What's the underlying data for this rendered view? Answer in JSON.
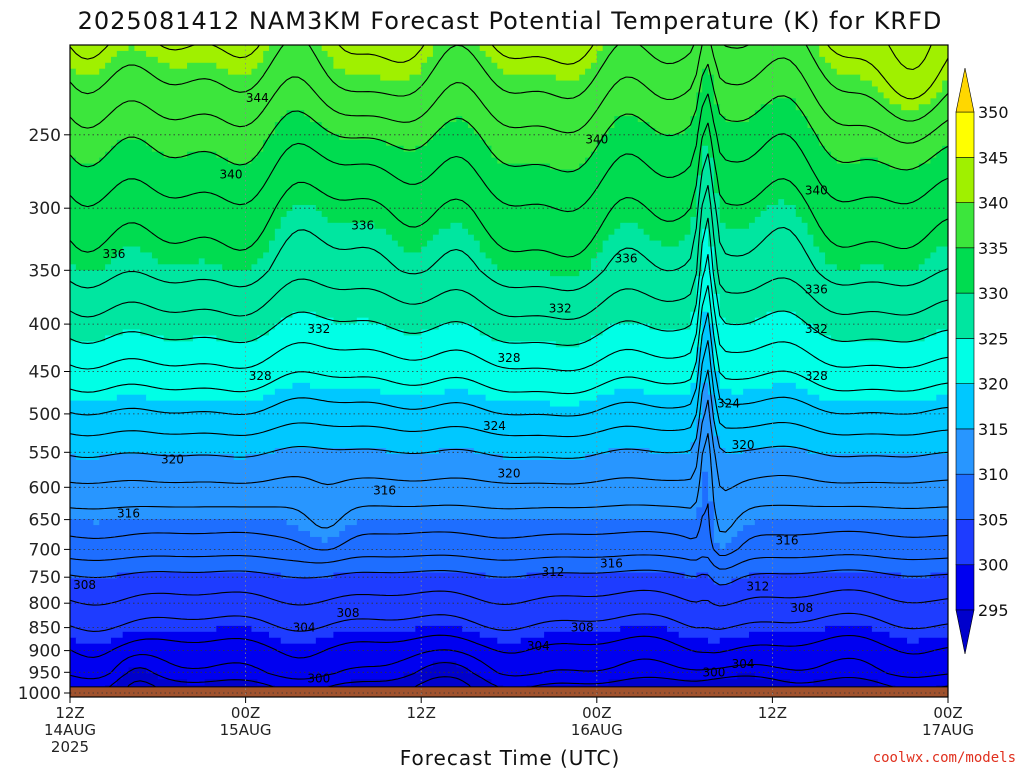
{
  "page": {
    "title": "2025081412 NAM3KM Forecast Potential Temperature (K) for KRFD",
    "credit": "coolwx.com/models"
  },
  "chart_data": {
    "type": "contour",
    "title": "2025081412 NAM3KM Forecast Potential Temperature (K) for KRFD",
    "xlabel": "Forecast Time (UTC)",
    "ylabel": "",
    "x_range_hours": [
      0,
      60
    ],
    "y_axis": {
      "variable": "pressure",
      "units": "hPa",
      "scale": "log",
      "range": [
        1010,
        200
      ],
      "inverted": true
    },
    "y_ticks": [
      250,
      300,
      350,
      400,
      450,
      500,
      550,
      600,
      650,
      700,
      750,
      800,
      850,
      900,
      950,
      1000
    ],
    "x_ticks": [
      {
        "hour": 0,
        "lines": [
          "12Z",
          "14AUG",
          "2025"
        ]
      },
      {
        "hour": 12,
        "lines": [
          "00Z",
          "15AUG"
        ]
      },
      {
        "hour": 24,
        "lines": [
          "12Z"
        ]
      },
      {
        "hour": 36,
        "lines": [
          "00Z",
          "16AUG"
        ]
      },
      {
        "hour": 48,
        "lines": [
          "12Z"
        ]
      },
      {
        "hour": 60,
        "lines": [
          "00Z",
          "17AUG"
        ]
      }
    ],
    "grid": true,
    "ground_level_hPa": 985,
    "colorbar": {
      "levels": [
        295,
        300,
        305,
        310,
        315,
        320,
        325,
        330,
        335,
        340,
        345,
        350
      ],
      "colors": [
        "#0000cc",
        "#0000f0",
        "#1e3cff",
        "#1e6eff",
        "#2896ff",
        "#00c8ff",
        "#00ffe6",
        "#00e6a0",
        "#00dc50",
        "#3ce63c",
        "#a0f000",
        "#ffff00"
      ],
      "low_extend_color": "#0000cc",
      "high_extend_color": "#ffd700"
    },
    "contour_interval": 2,
    "theta_profile": [
      {
        "p": 985,
        "theta": 299.5
      },
      {
        "p": 950,
        "theta": 302.0
      },
      {
        "p": 900,
        "theta": 303.5
      },
      {
        "p": 850,
        "theta": 305.5
      },
      {
        "p": 800,
        "theta": 307.5
      },
      {
        "p": 750,
        "theta": 309.5
      },
      {
        "p": 700,
        "theta": 313.0
      },
      {
        "p": 650,
        "theta": 315.0
      },
      {
        "p": 600,
        "theta": 317.5
      },
      {
        "p": 550,
        "theta": 320.0
      },
      {
        "p": 500,
        "theta": 323.5
      },
      {
        "p": 450,
        "theta": 327.0
      },
      {
        "p": 400,
        "theta": 330.5
      },
      {
        "p": 350,
        "theta": 334.0
      },
      {
        "p": 300,
        "theta": 336.5
      },
      {
        "p": 250,
        "theta": 340.0
      },
      {
        "p": 200,
        "theta": 345.0
      }
    ],
    "contour_labels": [
      {
        "text": "344",
        "hour": 12.8,
        "p": 228
      },
      {
        "text": "340",
        "hour": 11.0,
        "p": 276
      },
      {
        "text": "340",
        "hour": 36.0,
        "p": 253
      },
      {
        "text": "340",
        "hour": 51.0,
        "p": 287
      },
      {
        "text": "336",
        "hour": 20.0,
        "p": 313
      },
      {
        "text": "336",
        "hour": 3.0,
        "p": 336
      },
      {
        "text": "336",
        "hour": 38.0,
        "p": 340
      },
      {
        "text": "336",
        "hour": 51.0,
        "p": 367
      },
      {
        "text": "332",
        "hour": 33.5,
        "p": 385
      },
      {
        "text": "332",
        "hour": 17.0,
        "p": 405
      },
      {
        "text": "332",
        "hour": 51.0,
        "p": 405
      },
      {
        "text": "328",
        "hour": 13.0,
        "p": 455
      },
      {
        "text": "328",
        "hour": 30.0,
        "p": 435
      },
      {
        "text": "328",
        "hour": 51.0,
        "p": 455
      },
      {
        "text": "324",
        "hour": 45.0,
        "p": 487
      },
      {
        "text": "324",
        "hour": 29.0,
        "p": 515
      },
      {
        "text": "320",
        "hour": 7.0,
        "p": 560
      },
      {
        "text": "320",
        "hour": 30.0,
        "p": 580
      },
      {
        "text": "320",
        "hour": 46.0,
        "p": 540
      },
      {
        "text": "316",
        "hour": 21.5,
        "p": 605
      },
      {
        "text": "316",
        "hour": 4.0,
        "p": 640
      },
      {
        "text": "316",
        "hour": 49.0,
        "p": 685
      },
      {
        "text": "316",
        "hour": 37.0,
        "p": 725
      },
      {
        "text": "312",
        "hour": 33.0,
        "p": 740
      },
      {
        "text": "312",
        "hour": 47.0,
        "p": 768
      },
      {
        "text": "308",
        "hour": 1.0,
        "p": 765
      },
      {
        "text": "308",
        "hour": 19.0,
        "p": 820
      },
      {
        "text": "308",
        "hour": 35.0,
        "p": 850
      },
      {
        "text": "308",
        "hour": 50.0,
        "p": 810
      },
      {
        "text": "304",
        "hour": 16.0,
        "p": 850
      },
      {
        "text": "304",
        "hour": 32.0,
        "p": 890
      },
      {
        "text": "304",
        "hour": 46.0,
        "p": 930
      },
      {
        "text": "300",
        "hour": 17.0,
        "p": 965
      },
      {
        "text": "300",
        "hour": 44.0,
        "p": 950
      }
    ]
  }
}
